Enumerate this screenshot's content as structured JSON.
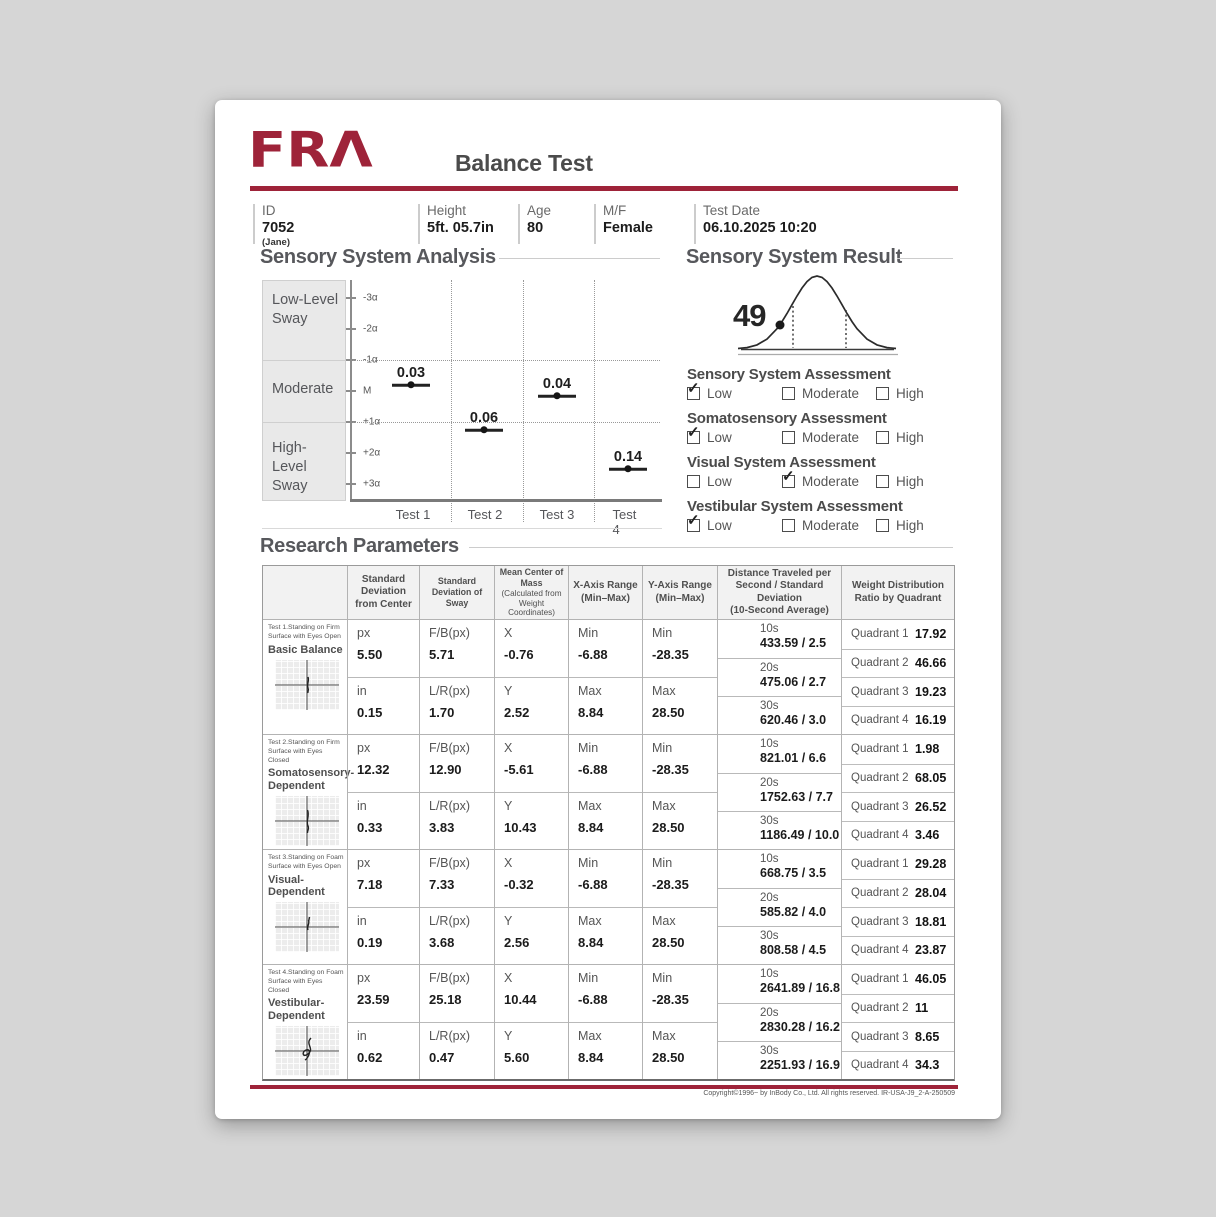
{
  "header": {
    "logo": "FRΛ",
    "title": "Balance Test"
  },
  "colors": {
    "brand_red": "#9E2339"
  },
  "patient": {
    "id_label": "ID",
    "id_value": "7052",
    "id_sub": "(Jane)",
    "height_label": "Height",
    "height_value": "5ft. 05.7in",
    "age_label": "Age",
    "age_value": "80",
    "sex_label": "M/F",
    "sex_value": "Female",
    "date_label": "Test Date",
    "date_value": "06.10.2025 10:20"
  },
  "analysis": {
    "title": "Sensory System Analysis",
    "bands": [
      "Low-Level Sway",
      "Moderate",
      "High-Level Sway"
    ],
    "y_ticks": [
      "-3α",
      "-2α",
      "-1α",
      "M",
      "+1α",
      "+2α",
      "+3α"
    ],
    "tests": [
      "Test 1",
      "Test 2",
      "Test 3",
      "Test 4"
    ],
    "values": [
      "0.03",
      "0.06",
      "0.04",
      "0.14"
    ]
  },
  "result": {
    "title": "Sensory System Result",
    "score": "49"
  },
  "assessments": [
    {
      "title": "Sensory System Assessment",
      "options": [
        {
          "label": "Low",
          "checked": true
        },
        {
          "label": "Moderate",
          "checked": false
        },
        {
          "label": "High",
          "checked": false
        }
      ]
    },
    {
      "title": "Somatosensory Assessment",
      "options": [
        {
          "label": "Low",
          "checked": true
        },
        {
          "label": "Moderate",
          "checked": false
        },
        {
          "label": "High",
          "checked": false
        }
      ]
    },
    {
      "title": "Visual System Assessment",
      "options": [
        {
          "label": "Low",
          "checked": false
        },
        {
          "label": "Moderate",
          "checked": true
        },
        {
          "label": "High",
          "checked": false
        }
      ]
    },
    {
      "title": "Vestibular System Assessment",
      "options": [
        {
          "label": "Low",
          "checked": true
        },
        {
          "label": "Moderate",
          "checked": false
        },
        {
          "label": "High",
          "checked": false
        }
      ]
    }
  ],
  "research": {
    "title": "Research Parameters",
    "columns": [
      {
        "main": "Standard Deviation from Center"
      },
      {
        "main": "Standard Deviation of Sway"
      },
      {
        "main": "Mean Center of Mass",
        "sub": "(Calculated from Weight Coordinates)"
      },
      {
        "main": "X-Axis Range",
        "sub": "(Min–Max)"
      },
      {
        "main": "Y-Axis Range",
        "sub": "(Min–Max)"
      },
      {
        "main": "Distance Traveled per Second / Standard Deviation",
        "sub": "(10-Second Average)"
      },
      {
        "main": "Weight Distribution Ratio by Quadrant"
      }
    ],
    "labels": {
      "px": "px",
      "inch": "in",
      "fb": "F/B(px)",
      "lr": "L/R(px)",
      "x": "X",
      "y": "Y",
      "min": "Min",
      "max": "Max",
      "t10": "10s",
      "t20": "20s",
      "t30": "30s",
      "quadrants": [
        "Quadrant 1",
        "Quadrant 2",
        "Quadrant 3",
        "Quadrant 4"
      ]
    },
    "rows": [
      {
        "desc": "Test 1.Standing on Firm Surface with Eyes Open",
        "name": "Basic Balance",
        "sd_px": "5.50",
        "sd_in": "0.15",
        "fb": "5.71",
        "lr": "1.70",
        "com_x": "-0.76",
        "com_y": "2.52",
        "xmin": "-6.88",
        "xmax": "8.84",
        "ymin": "-28.35",
        "ymax": "28.50",
        "dist": [
          "433.59 / 2.5",
          "475.06 / 2.7",
          "620.46 / 3.0"
        ],
        "quads": [
          "17.92",
          "46.66",
          "19.23",
          "16.19"
        ]
      },
      {
        "desc": "Test 2.Standing on Firm Surface with Eyes Closed",
        "name": "Somatosensory-Dependent",
        "sd_px": "12.32",
        "sd_in": "0.33",
        "fb": "12.90",
        "lr": "3.83",
        "com_x": "-5.61",
        "com_y": "10.43",
        "xmin": "-6.88",
        "xmax": "8.84",
        "ymin": "-28.35",
        "ymax": "28.50",
        "dist": [
          "821.01 / 6.6",
          "1752.63 / 7.7",
          "1186.49 / 10.0"
        ],
        "quads": [
          "1.98",
          "68.05",
          "26.52",
          "3.46"
        ]
      },
      {
        "desc": "Test 3.Standing on Foam Surface with Eyes Open",
        "name": "Visual-Dependent",
        "sd_px": "7.18",
        "sd_in": "0.19",
        "fb": "7.33",
        "lr": "3.68",
        "com_x": "-0.32",
        "com_y": "2.56",
        "xmin": "-6.88",
        "xmax": "8.84",
        "ymin": "-28.35",
        "ymax": "28.50",
        "dist": [
          "668.75 / 3.5",
          "585.82 / 4.0",
          "808.58 / 4.5"
        ],
        "quads": [
          "29.28",
          "28.04",
          "18.81",
          "23.87"
        ]
      },
      {
        "desc": "Test 4.Standing on Foam Surface with Eyes Closed",
        "name": "Vestibular-Dependent",
        "sd_px": "23.59",
        "sd_in": "0.62",
        "fb": "25.18",
        "lr": "0.47",
        "com_x": "10.44",
        "com_y": "5.60",
        "xmin": "-6.88",
        "xmax": "8.84",
        "ymin": "-28.35",
        "ymax": "28.50",
        "dist": [
          "2641.89 / 16.8",
          "2830.28 / 16.2",
          "2251.93 / 16.9"
        ],
        "quads": [
          "46.05",
          "11",
          "8.65",
          "34.3"
        ]
      }
    ]
  },
  "footer": {
    "copyright": "Copyright©1996~ by InBody Co., Ltd. All rights reserved. IR-USA-J9_2-A-250509"
  },
  "chart_data": [
    {
      "type": "scatter",
      "title": "Sensory System Analysis",
      "categories": [
        "Test 1",
        "Test 2",
        "Test 3",
        "Test 4"
      ],
      "values": [
        0.03,
        0.06,
        0.04,
        0.14
      ],
      "value_positions_sigma": [
        -0.3,
        0.8,
        0.1,
        2.5
      ],
      "y_axis_ticks": [
        "-3α",
        "-2α",
        "-1α",
        "M",
        "+1α",
        "+2α",
        "+3α"
      ],
      "y_bands": [
        "Low-Level Sway",
        "Moderate",
        "High-Level Sway"
      ],
      "grid": "dotted lines at ±1α and between test columns",
      "legend": "none"
    },
    {
      "type": "area",
      "title": "Sensory System Result",
      "score": 49,
      "description": "normal distribution bell curve with marker dot on the lower-left slope at the score position, dotted lines at ±1 std dev"
    }
  ]
}
